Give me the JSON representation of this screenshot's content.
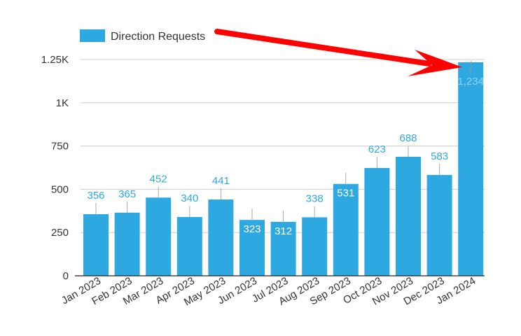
{
  "chart_data": {
    "type": "bar",
    "categories": [
      "Jan 2023",
      "Feb 2023",
      "Mar 2023",
      "Apr 2023",
      "May 2023",
      "Jun 2023",
      "Jul 2023",
      "Aug 2023",
      "Sep 2023",
      "Oct 2023",
      "Nov 2023",
      "Dec 2023",
      "Jan 2024"
    ],
    "series": [
      {
        "name": "Direction Requests",
        "values": [
          356,
          365,
          452,
          340,
          441,
          323,
          312,
          338,
          531,
          623,
          688,
          583,
          1234
        ],
        "labels": [
          "356",
          "365",
          "452",
          "340",
          "441",
          "323",
          "312",
          "338",
          "531",
          "623",
          "688",
          "583",
          "1,234"
        ],
        "color": "#2EA8E1"
      }
    ],
    "title": "",
    "xlabel": "",
    "ylabel": "",
    "ylim": [
      0,
      1250
    ],
    "yticks": [
      {
        "value": 0,
        "label": "0"
      },
      {
        "value": 250,
        "label": "250"
      },
      {
        "value": 500,
        "label": "500"
      },
      {
        "value": 750,
        "label": "750"
      },
      {
        "value": 1000,
        "label": "1K"
      },
      {
        "value": 1250,
        "label": "1.25K"
      }
    ],
    "grid": true,
    "legend": "top-left",
    "annotation": {
      "type": "arrow",
      "color": "#FF0000",
      "target": "Jan 2024"
    }
  }
}
